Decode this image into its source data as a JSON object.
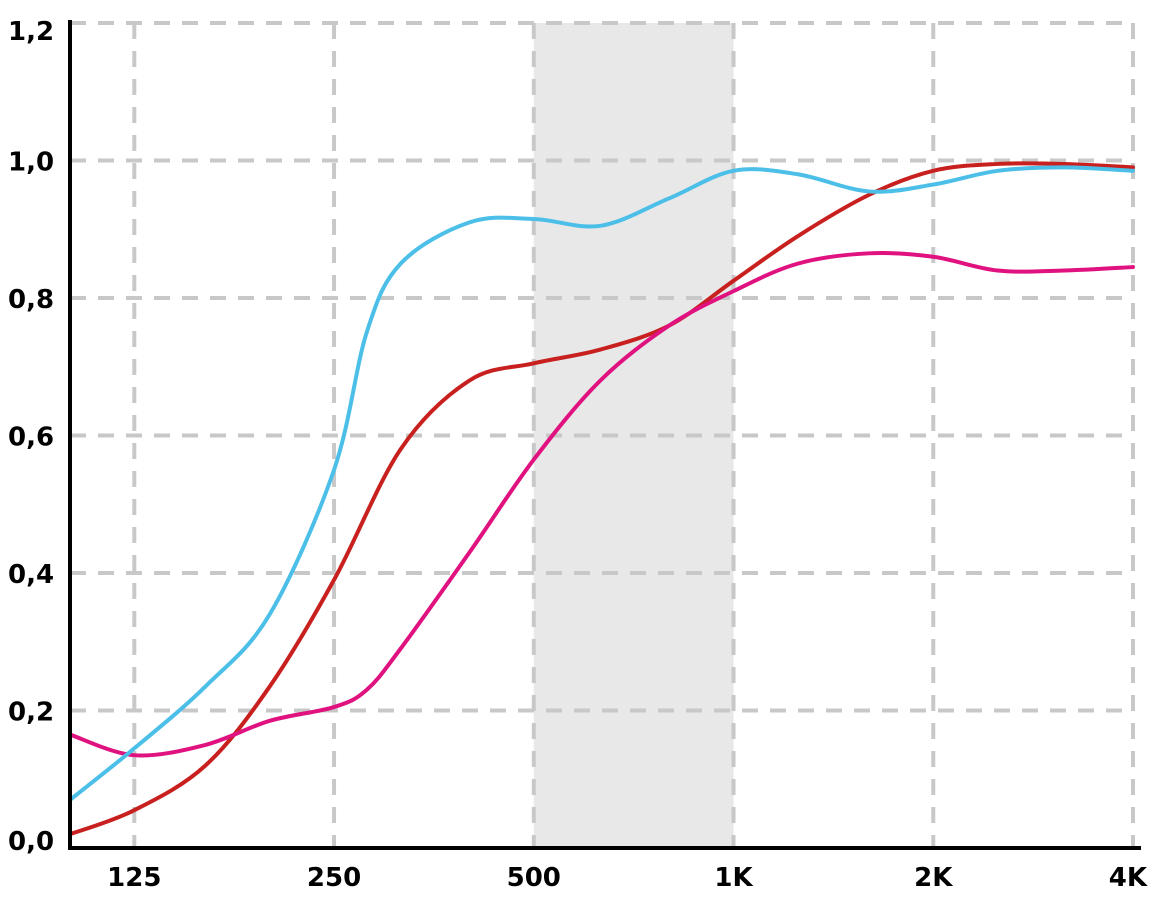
{
  "chart_data": {
    "type": "line",
    "x_scale": "log2",
    "x_ticks": [
      "125",
      "250",
      "500",
      "1K",
      "2K",
      "4K"
    ],
    "x_tick_values": [
      125,
      250,
      500,
      1000,
      2000,
      4000
    ],
    "xlim": [
      100,
      4000
    ],
    "ylim": [
      0,
      1.2
    ],
    "y_ticks": [
      "0,0",
      "0,2",
      "0,4",
      "0,6",
      "0,8",
      "1,0",
      "1,2"
    ],
    "y_tick_values": [
      0,
      0.2,
      0.4,
      0.6,
      0.8,
      1.0,
      1.2
    ],
    "grid": true,
    "highlight_band": {
      "from": 500,
      "to": 1000,
      "color": "#e8e8e8"
    },
    "title": "",
    "xlabel": "",
    "ylabel": "",
    "series": [
      {
        "color": "#4bbfe8",
        "x": [
          100,
          125,
          160,
          200,
          250,
          280,
          315,
          400,
          500,
          630,
          800,
          1000,
          1250,
          1600,
          2000,
          2500,
          3150,
          4000
        ],
        "y": [
          0.07,
          0.145,
          0.235,
          0.34,
          0.55,
          0.75,
          0.85,
          0.91,
          0.915,
          0.905,
          0.945,
          0.985,
          0.98,
          0.955,
          0.965,
          0.985,
          0.99,
          0.985
        ]
      },
      {
        "color": "#c8201e",
        "x": [
          100,
          125,
          160,
          200,
          250,
          315,
          400,
          500,
          630,
          800,
          1000,
          1250,
          1600,
          2000,
          2500,
          3150,
          4000
        ],
        "y": [
          0.02,
          0.055,
          0.12,
          0.235,
          0.39,
          0.58,
          0.68,
          0.705,
          0.725,
          0.76,
          0.825,
          0.89,
          0.95,
          0.985,
          0.995,
          0.995,
          0.99
        ]
      },
      {
        "color": "#e0127f",
        "x": [
          100,
          125,
          160,
          200,
          250,
          280,
          315,
          400,
          500,
          630,
          800,
          1000,
          1250,
          1600,
          2000,
          2500,
          3150,
          4000
        ],
        "y": [
          0.165,
          0.135,
          0.15,
          0.185,
          0.205,
          0.23,
          0.29,
          0.43,
          0.565,
          0.68,
          0.76,
          0.81,
          0.85,
          0.865,
          0.86,
          0.84,
          0.84,
          0.845
        ]
      }
    ]
  }
}
